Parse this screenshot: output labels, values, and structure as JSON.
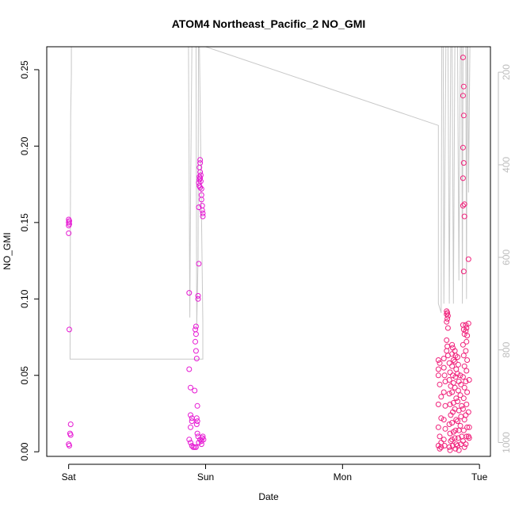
{
  "chart_data": {
    "type": "scatter",
    "title": "ATOM4 Northeast_Pacific_2 NO_GMI",
    "xlabel": "Date",
    "ylabel": "NO_GMI",
    "x_ticks": [
      {
        "label": "Sat",
        "value": 0
      },
      {
        "label": "Sun",
        "value": 1
      },
      {
        "label": "Mon",
        "value": 2
      },
      {
        "label": "Tue",
        "value": 3
      }
    ],
    "xlim": [
      -0.16,
      3.08
    ],
    "ylim": [
      -0.003,
      0.265
    ],
    "y_ticks": [
      0.0,
      0.05,
      0.1,
      0.15,
      0.2,
      0.25
    ],
    "y_tick_labels": [
      "0.00",
      "0.05",
      "0.10",
      "0.15",
      "0.20",
      "0.25"
    ],
    "y2_lim": [
      1030,
      145
    ],
    "y2_ticks": [
      200,
      400,
      600,
      800,
      1000
    ],
    "y2_tick_labels": [
      "200",
      "400",
      "600",
      "800",
      "1000"
    ],
    "colors": {
      "point_magenta": "#e619d3",
      "point_pink": "#f0207a",
      "pressure_line": "#c8c8c8",
      "axis": "#000000",
      "secondary_axis": "#bdbdbd"
    },
    "points": [
      [
        0.0,
        0.152
      ],
      [
        0.005,
        0.151
      ],
      [
        0.0,
        0.15
      ],
      [
        0.005,
        0.149
      ],
      [
        0.0,
        0.148
      ],
      [
        0.0,
        0.143
      ],
      [
        0.005,
        0.08
      ],
      [
        0.015,
        0.018
      ],
      [
        0.01,
        0.012
      ],
      [
        0.015,
        0.011
      ],
      [
        0.0,
        0.005
      ],
      [
        0.005,
        0.004
      ],
      [
        0.88,
        0.104
      ],
      [
        0.88,
        0.054
      ],
      [
        0.89,
        0.042
      ],
      [
        0.89,
        0.024
      ],
      [
        0.9,
        0.022
      ],
      [
        0.9,
        0.02
      ],
      [
        0.89,
        0.016
      ],
      [
        0.88,
        0.008
      ],
      [
        0.89,
        0.006
      ],
      [
        0.9,
        0.004
      ],
      [
        0.91,
        0.003
      ],
      [
        0.92,
        0.003
      ],
      [
        0.93,
        0.003
      ],
      [
        0.93,
        0.082
      ],
      [
        0.925,
        0.08
      ],
      [
        0.93,
        0.077
      ],
      [
        0.925,
        0.072
      ],
      [
        0.93,
        0.066
      ],
      [
        0.935,
        0.061
      ],
      [
        0.92,
        0.04
      ],
      [
        0.94,
        0.03
      ],
      [
        0.935,
        0.022
      ],
      [
        0.94,
        0.02
      ],
      [
        0.935,
        0.018
      ],
      [
        0.94,
        0.012
      ],
      [
        0.945,
        0.01
      ],
      [
        0.945,
        0.102
      ],
      [
        0.945,
        0.1
      ],
      [
        0.95,
        0.123
      ],
      [
        0.95,
        0.16
      ],
      [
        0.96,
        0.191
      ],
      [
        0.96,
        0.189
      ],
      [
        0.955,
        0.186
      ],
      [
        0.96,
        0.183
      ],
      [
        0.955,
        0.18
      ],
      [
        0.96,
        0.179
      ],
      [
        0.955,
        0.178
      ],
      [
        0.95,
        0.176
      ],
      [
        0.955,
        0.174
      ],
      [
        0.96,
        0.173
      ],
      [
        0.965,
        0.181
      ],
      [
        0.965,
        0.177
      ],
      [
        0.97,
        0.172
      ],
      [
        0.97,
        0.168
      ],
      [
        0.97,
        0.165
      ],
      [
        0.975,
        0.161
      ],
      [
        0.975,
        0.158
      ],
      [
        0.98,
        0.156
      ],
      [
        0.98,
        0.154
      ],
      [
        0.96,
        0.008
      ],
      [
        0.97,
        0.007
      ],
      [
        0.975,
        0.009
      ],
      [
        0.98,
        0.01
      ],
      [
        0.985,
        0.008
      ],
      [
        0.97,
        0.005
      ],
      [
        0.95,
        0.006
      ],
      [
        2.7,
        0.06
      ],
      [
        2.7,
        0.054
      ],
      [
        2.71,
        0.058
      ],
      [
        2.7,
        0.05
      ],
      [
        2.71,
        0.044
      ],
      [
        2.72,
        0.036
      ],
      [
        2.7,
        0.031
      ],
      [
        2.72,
        0.022
      ],
      [
        2.7,
        0.016
      ],
      [
        2.71,
        0.01
      ],
      [
        2.72,
        0.006
      ],
      [
        2.7,
        0.004
      ],
      [
        2.71,
        0.002
      ],
      [
        2.72,
        0.003
      ],
      [
        2.74,
        0.061
      ],
      [
        2.74,
        0.055
      ],
      [
        2.745,
        0.05
      ],
      [
        2.75,
        0.046
      ],
      [
        2.74,
        0.039
      ],
      [
        2.75,
        0.03
      ],
      [
        2.74,
        0.021
      ],
      [
        2.75,
        0.015
      ],
      [
        2.74,
        0.008
      ],
      [
        2.745,
        0.004
      ],
      [
        2.76,
        0.092
      ],
      [
        2.765,
        0.091
      ],
      [
        2.76,
        0.09
      ],
      [
        2.77,
        0.089
      ],
      [
        2.765,
        0.087
      ],
      [
        2.76,
        0.085
      ],
      [
        2.77,
        0.081
      ],
      [
        2.76,
        0.073
      ],
      [
        2.765,
        0.069
      ],
      [
        2.76,
        0.066
      ],
      [
        2.77,
        0.063
      ],
      [
        2.78,
        0.058
      ],
      [
        2.785,
        0.052
      ],
      [
        2.78,
        0.047
      ],
      [
        2.79,
        0.043
      ],
      [
        2.78,
        0.038
      ],
      [
        2.785,
        0.031
      ],
      [
        2.79,
        0.024
      ],
      [
        2.78,
        0.018
      ],
      [
        2.785,
        0.012
      ],
      [
        2.79,
        0.007
      ],
      [
        2.78,
        0.003
      ],
      [
        2.785,
        0.001
      ],
      [
        2.8,
        0.07
      ],
      [
        2.805,
        0.068
      ],
      [
        2.8,
        0.064
      ],
      [
        2.81,
        0.06
      ],
      [
        2.8,
        0.056
      ],
      [
        2.805,
        0.05
      ],
      [
        2.81,
        0.045
      ],
      [
        2.8,
        0.039
      ],
      [
        2.81,
        0.032
      ],
      [
        2.805,
        0.026
      ],
      [
        2.8,
        0.019
      ],
      [
        2.81,
        0.013
      ],
      [
        2.8,
        0.008
      ],
      [
        2.805,
        0.004
      ],
      [
        2.82,
        0.066
      ],
      [
        2.825,
        0.063
      ],
      [
        2.82,
        0.059
      ],
      [
        2.83,
        0.054
      ],
      [
        2.825,
        0.049
      ],
      [
        2.82,
        0.042
      ],
      [
        2.83,
        0.035
      ],
      [
        2.82,
        0.028
      ],
      [
        2.83,
        0.021
      ],
      [
        2.825,
        0.014
      ],
      [
        2.82,
        0.009
      ],
      [
        2.83,
        0.005
      ],
      [
        2.825,
        0.002
      ],
      [
        2.84,
        0.062
      ],
      [
        2.845,
        0.057
      ],
      [
        2.84,
        0.051
      ],
      [
        2.85,
        0.046
      ],
      [
        2.845,
        0.04
      ],
      [
        2.84,
        0.033
      ],
      [
        2.85,
        0.027
      ],
      [
        2.84,
        0.02
      ],
      [
        2.85,
        0.014
      ],
      [
        2.845,
        0.009
      ],
      [
        2.84,
        0.004
      ],
      [
        2.85,
        0.001
      ],
      [
        2.86,
        0.05
      ],
      [
        2.865,
        0.044
      ],
      [
        2.86,
        0.037
      ],
      [
        2.87,
        0.03
      ],
      [
        2.865,
        0.023
      ],
      [
        2.86,
        0.017
      ],
      [
        2.87,
        0.01
      ],
      [
        2.865,
        0.005
      ],
      [
        2.88,
        0.258
      ],
      [
        2.885,
        0.239
      ],
      [
        2.88,
        0.233
      ],
      [
        2.885,
        0.22
      ],
      [
        2.88,
        0.199
      ],
      [
        2.885,
        0.189
      ],
      [
        2.88,
        0.179
      ],
      [
        2.89,
        0.162
      ],
      [
        2.88,
        0.161
      ],
      [
        2.89,
        0.154
      ],
      [
        2.885,
        0.118
      ],
      [
        2.88,
        0.083
      ],
      [
        2.885,
        0.08
      ],
      [
        2.89,
        0.077
      ],
      [
        2.88,
        0.07
      ],
      [
        2.885,
        0.063
      ],
      [
        2.89,
        0.056
      ],
      [
        2.88,
        0.049
      ],
      [
        2.89,
        0.042
      ],
      [
        2.885,
        0.035
      ],
      [
        2.88,
        0.028
      ],
      [
        2.89,
        0.021
      ],
      [
        2.885,
        0.014
      ],
      [
        2.88,
        0.007
      ],
      [
        2.89,
        0.003
      ],
      [
        2.9,
        0.083
      ],
      [
        2.905,
        0.081
      ],
      [
        2.9,
        0.079
      ],
      [
        2.91,
        0.076
      ],
      [
        2.905,
        0.072
      ],
      [
        2.9,
        0.066
      ],
      [
        2.91,
        0.06
      ],
      [
        2.905,
        0.053
      ],
      [
        2.9,
        0.046
      ],
      [
        2.91,
        0.039
      ],
      [
        2.905,
        0.031
      ],
      [
        2.9,
        0.024
      ],
      [
        2.91,
        0.016
      ],
      [
        2.905,
        0.01
      ],
      [
        2.9,
        0.005
      ],
      [
        2.92,
        0.126
      ],
      [
        2.92,
        0.084
      ],
      [
        2.925,
        0.047
      ],
      [
        2.92,
        0.026
      ],
      [
        2.925,
        0.016
      ],
      [
        2.92,
        0.01
      ],
      [
        2.925,
        0.009
      ]
    ],
    "pressure_line": [
      [
        0.02,
        145
      ],
      [
        0.02,
        205
      ],
      [
        0.015,
        290
      ],
      [
        0.01,
        820
      ],
      [
        0.98,
        820
      ],
      [
        0.98,
        740
      ],
      [
        0.955,
        145
      ],
      [
        0.948,
        145
      ],
      [
        0.945,
        600
      ],
      [
        0.935,
        750
      ],
      [
        0.93,
        145
      ],
      [
        0.9,
        145
      ],
      [
        0.89,
        470
      ],
      [
        0.885,
        730
      ],
      [
        0.875,
        145
      ],
      [
        1.0,
        145
      ],
      [
        2.7,
        315
      ],
      [
        2.7,
        700
      ],
      [
        2.72,
        720
      ],
      [
        2.725,
        145
      ],
      [
        2.735,
        145
      ],
      [
        2.74,
        700
      ],
      [
        2.755,
        145
      ],
      [
        2.77,
        145
      ],
      [
        2.78,
        700
      ],
      [
        2.79,
        145
      ],
      [
        2.8,
        145
      ],
      [
        2.81,
        700
      ],
      [
        2.82,
        145
      ],
      [
        2.84,
        145
      ],
      [
        2.85,
        650
      ],
      [
        2.86,
        145
      ],
      [
        2.87,
        145
      ],
      [
        2.875,
        700
      ],
      [
        2.88,
        145
      ],
      [
        2.9,
        145
      ],
      [
        2.905,
        690
      ],
      [
        2.91,
        145
      ],
      [
        2.915,
        145
      ],
      [
        2.92,
        460
      ],
      [
        2.93,
        145
      ],
      [
        2.94,
        145
      ]
    ]
  }
}
